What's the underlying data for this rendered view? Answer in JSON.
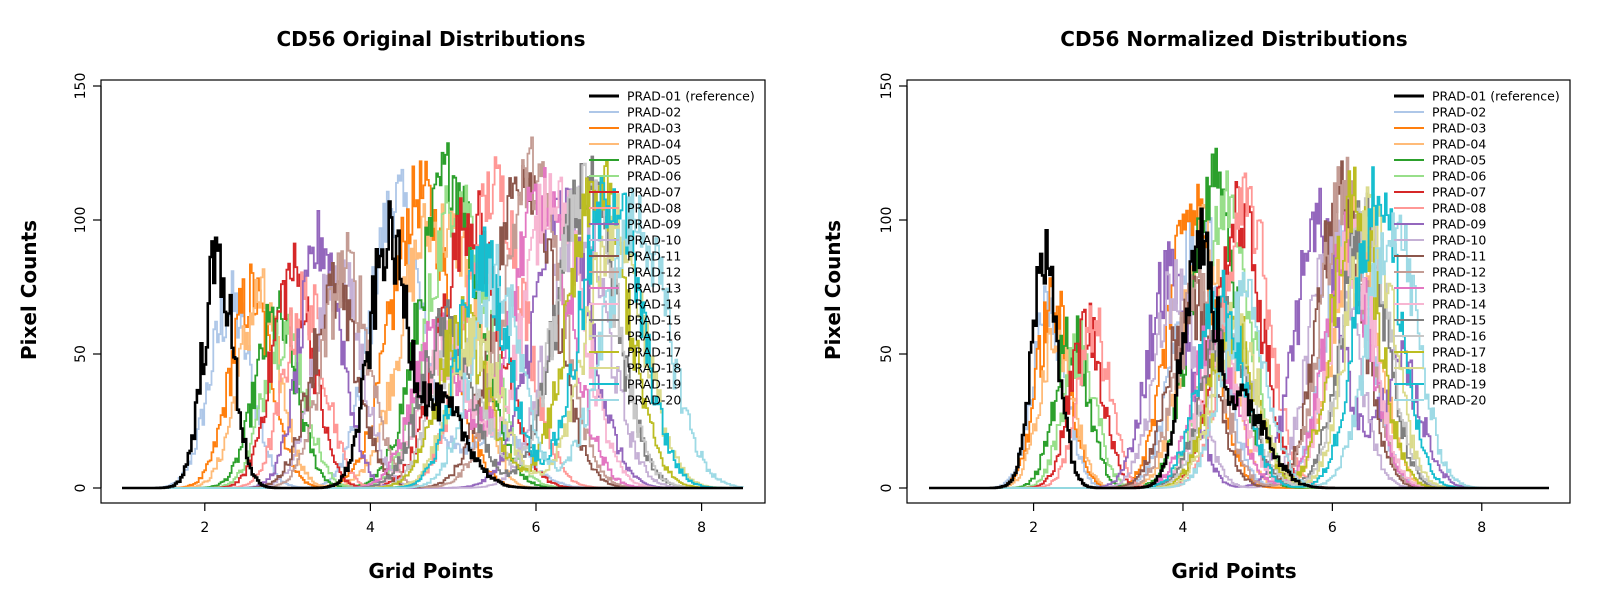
{
  "palette": {
    "PRAD-01 (reference)": "#000000",
    "PRAD-02": "#aec7e8",
    "PRAD-03": "#ff7f0e",
    "PRAD-04": "#ffbb78",
    "PRAD-05": "#2ca02c",
    "PRAD-06": "#98df8a",
    "PRAD-07": "#d62728",
    "PRAD-08": "#ff9896",
    "PRAD-09": "#9467bd",
    "PRAD-10": "#c5b0d5",
    "PRAD-11": "#8c564b",
    "PRAD-12": "#c49c94",
    "PRAD-13": "#e377c2",
    "PRAD-14": "#f7b6d2",
    "PRAD-15": "#7f7f7f",
    "PRAD-16": "#c7c7c7",
    "PRAD-17": "#bcbd22",
    "PRAD-18": "#dbdb8d",
    "PRAD-19": "#17becf",
    "PRAD-20": "#9edae5"
  },
  "chart_data": [
    {
      "type": "line",
      "title": "CD56 Original Distributions",
      "xlabel": "Grid Points",
      "ylabel": "Pixel Counts",
      "xlim": [
        1.0,
        8.5
      ],
      "ylim": [
        0,
        150
      ],
      "x_ticks": [
        2,
        4,
        6,
        8
      ],
      "y_ticks": [
        0,
        50,
        100,
        150
      ],
      "legend_position": "top-right",
      "grid": false,
      "series": [
        {
          "name": "PRAD-01 (reference)",
          "peaks": [
            {
              "center": 2.15,
              "height": 85,
              "sd": 0.18
            },
            {
              "center": 4.2,
              "height": 90,
              "sd": 0.22
            },
            {
              "center": 4.85,
              "height": 30,
              "sd": 0.3
            }
          ]
        },
        {
          "name": "PRAD-02",
          "peaks": [
            {
              "center": 2.3,
              "height": 68,
              "sd": 0.25
            },
            {
              "center": 4.3,
              "height": 108,
              "sd": 0.3
            },
            {
              "center": 5.5,
              "height": 22,
              "sd": 0.35
            }
          ]
        },
        {
          "name": "PRAD-03",
          "peaks": [
            {
              "center": 2.55,
              "height": 72,
              "sd": 0.25
            },
            {
              "center": 4.6,
              "height": 110,
              "sd": 0.35
            }
          ]
        },
        {
          "name": "PRAD-04",
          "peaks": [
            {
              "center": 2.65,
              "height": 70,
              "sd": 0.25
            },
            {
              "center": 4.7,
              "height": 95,
              "sd": 0.35
            },
            {
              "center": 5.2,
              "height": 45,
              "sd": 0.2
            }
          ]
        },
        {
          "name": "PRAD-05",
          "peaks": [
            {
              "center": 2.85,
              "height": 62,
              "sd": 0.25
            },
            {
              "center": 4.95,
              "height": 118,
              "sd": 0.35
            }
          ]
        },
        {
          "name": "PRAD-06",
          "peaks": [
            {
              "center": 2.95,
              "height": 60,
              "sd": 0.25
            },
            {
              "center": 5.05,
              "height": 110,
              "sd": 0.35
            }
          ]
        },
        {
          "name": "PRAD-07",
          "peaks": [
            {
              "center": 3.05,
              "height": 80,
              "sd": 0.25
            },
            {
              "center": 5.2,
              "height": 102,
              "sd": 0.35
            }
          ]
        },
        {
          "name": "PRAD-08",
          "peaks": [
            {
              "center": 3.2,
              "height": 70,
              "sd": 0.25
            },
            {
              "center": 5.5,
              "height": 112,
              "sd": 0.35
            }
          ]
        },
        {
          "name": "PRAD-09",
          "peaks": [
            {
              "center": 3.4,
              "height": 92,
              "sd": 0.25
            },
            {
              "center": 6.3,
              "height": 102,
              "sd": 0.35
            }
          ]
        },
        {
          "name": "PRAD-10",
          "peaks": [
            {
              "center": 3.6,
              "height": 80,
              "sd": 0.28
            },
            {
              "center": 6.5,
              "height": 100,
              "sd": 0.35
            }
          ]
        },
        {
          "name": "PRAD-11",
          "peaks": [
            {
              "center": 3.55,
              "height": 72,
              "sd": 0.28
            },
            {
              "center": 5.85,
              "height": 120,
              "sd": 0.35
            }
          ]
        },
        {
          "name": "PRAD-12",
          "peaks": [
            {
              "center": 3.7,
              "height": 82,
              "sd": 0.28
            },
            {
              "center": 5.95,
              "height": 118,
              "sd": 0.35
            }
          ]
        },
        {
          "name": "PRAD-13",
          "peaks": [
            {
              "center": 4.8,
              "height": 55,
              "sd": 0.3
            },
            {
              "center": 6.05,
              "height": 108,
              "sd": 0.35
            }
          ]
        },
        {
          "name": "PRAD-14",
          "peaks": [
            {
              "center": 4.9,
              "height": 52,
              "sd": 0.3
            },
            {
              "center": 6.2,
              "height": 112,
              "sd": 0.35
            }
          ]
        },
        {
          "name": "PRAD-15",
          "peaks": [
            {
              "center": 4.9,
              "height": 58,
              "sd": 0.3
            },
            {
              "center": 6.6,
              "height": 112,
              "sd": 0.35
            }
          ]
        },
        {
          "name": "PRAD-16",
          "peaks": [
            {
              "center": 5.05,
              "height": 55,
              "sd": 0.3
            },
            {
              "center": 6.6,
              "height": 116,
              "sd": 0.35
            }
          ]
        },
        {
          "name": "PRAD-17",
          "peaks": [
            {
              "center": 5.1,
              "height": 60,
              "sd": 0.3
            },
            {
              "center": 6.75,
              "height": 112,
              "sd": 0.35
            }
          ]
        },
        {
          "name": "PRAD-18",
          "peaks": [
            {
              "center": 5.25,
              "height": 58,
              "sd": 0.3
            },
            {
              "center": 6.95,
              "height": 98,
              "sd": 0.35
            }
          ]
        },
        {
          "name": "PRAD-19",
          "peaks": [
            {
              "center": 5.35,
              "height": 85,
              "sd": 0.3
            },
            {
              "center": 6.9,
              "height": 110,
              "sd": 0.35
            }
          ]
        },
        {
          "name": "PRAD-20",
          "peaks": [
            {
              "center": 5.5,
              "height": 78,
              "sd": 0.3
            },
            {
              "center": 7.2,
              "height": 100,
              "sd": 0.38
            }
          ]
        }
      ]
    },
    {
      "type": "line",
      "title": "CD56 Normalized Distributions",
      "xlabel": "Grid Points",
      "ylabel": "Pixel Counts",
      "xlim": [
        0.6,
        8.9
      ],
      "ylim": [
        0,
        150
      ],
      "x_ticks": [
        2,
        4,
        6,
        8
      ],
      "y_ticks": [
        0,
        50,
        100,
        150
      ],
      "legend_position": "top-right",
      "grid": false,
      "series": [
        {
          "name": "PRAD-01 (reference)",
          "peaks": [
            {
              "center": 2.15,
              "height": 85,
              "sd": 0.18
            },
            {
              "center": 4.2,
              "height": 90,
              "sd": 0.22
            },
            {
              "center": 4.85,
              "height": 30,
              "sd": 0.3
            }
          ]
        },
        {
          "name": "PRAD-02",
          "peaks": [
            {
              "center": 2.2,
              "height": 65,
              "sd": 0.22
            },
            {
              "center": 4.2,
              "height": 100,
              "sd": 0.3
            },
            {
              "center": 6.2,
              "height": 95,
              "sd": 0.3
            }
          ]
        },
        {
          "name": "PRAD-03",
          "peaks": [
            {
              "center": 2.25,
              "height": 68,
              "sd": 0.22
            },
            {
              "center": 4.1,
              "height": 108,
              "sd": 0.3
            }
          ]
        },
        {
          "name": "PRAD-04",
          "peaks": [
            {
              "center": 2.3,
              "height": 60,
              "sd": 0.22
            },
            {
              "center": 4.3,
              "height": 95,
              "sd": 0.3
            },
            {
              "center": 6.3,
              "height": 98,
              "sd": 0.3
            }
          ]
        },
        {
          "name": "PRAD-05",
          "peaks": [
            {
              "center": 2.5,
              "height": 58,
              "sd": 0.22
            },
            {
              "center": 4.4,
              "height": 115,
              "sd": 0.3
            }
          ]
        },
        {
          "name": "PRAD-06",
          "peaks": [
            {
              "center": 2.6,
              "height": 52,
              "sd": 0.22
            },
            {
              "center": 4.6,
              "height": 108,
              "sd": 0.3
            }
          ]
        },
        {
          "name": "PRAD-07",
          "peaks": [
            {
              "center": 2.7,
              "height": 60,
              "sd": 0.22
            },
            {
              "center": 4.75,
              "height": 102,
              "sd": 0.3
            }
          ]
        },
        {
          "name": "PRAD-08",
          "peaks": [
            {
              "center": 2.8,
              "height": 58,
              "sd": 0.22
            },
            {
              "center": 4.85,
              "height": 105,
              "sd": 0.3
            }
          ]
        },
        {
          "name": "PRAD-09",
          "peaks": [
            {
              "center": 3.8,
              "height": 80,
              "sd": 0.28
            },
            {
              "center": 5.8,
              "height": 100,
              "sd": 0.3
            },
            {
              "center": 6.9,
              "height": 45,
              "sd": 0.28
            }
          ]
        },
        {
          "name": "PRAD-10",
          "peaks": [
            {
              "center": 3.9,
              "height": 75,
              "sd": 0.28
            },
            {
              "center": 6.0,
              "height": 95,
              "sd": 0.3
            }
          ]
        },
        {
          "name": "PRAD-11",
          "peaks": [
            {
              "center": 4.1,
              "height": 70,
              "sd": 0.3
            },
            {
              "center": 6.1,
              "height": 110,
              "sd": 0.3
            }
          ]
        },
        {
          "name": "PRAD-12",
          "peaks": [
            {
              "center": 4.2,
              "height": 72,
              "sd": 0.3
            },
            {
              "center": 6.15,
              "height": 112,
              "sd": 0.3
            }
          ]
        },
        {
          "name": "PRAD-13",
          "peaks": [
            {
              "center": 4.4,
              "height": 55,
              "sd": 0.3
            },
            {
              "center": 6.2,
              "height": 90,
              "sd": 0.3
            }
          ]
        },
        {
          "name": "PRAD-14",
          "peaks": [
            {
              "center": 4.5,
              "height": 52,
              "sd": 0.3
            },
            {
              "center": 6.25,
              "height": 88,
              "sd": 0.3
            }
          ]
        },
        {
          "name": "PRAD-15",
          "peaks": [
            {
              "center": 4.55,
              "height": 60,
              "sd": 0.3
            },
            {
              "center": 6.4,
              "height": 100,
              "sd": 0.3
            }
          ]
        },
        {
          "name": "PRAD-16",
          "peaks": [
            {
              "center": 4.6,
              "height": 58,
              "sd": 0.3
            },
            {
              "center": 6.45,
              "height": 98,
              "sd": 0.3
            }
          ]
        },
        {
          "name": "PRAD-17",
          "peaks": [
            {
              "center": 4.65,
              "height": 62,
              "sd": 0.3
            },
            {
              "center": 6.3,
              "height": 110,
              "sd": 0.3
            }
          ]
        },
        {
          "name": "PRAD-18",
          "peaks": [
            {
              "center": 4.7,
              "height": 60,
              "sd": 0.3
            },
            {
              "center": 6.5,
              "height": 100,
              "sd": 0.3
            }
          ]
        },
        {
          "name": "PRAD-19",
          "peaks": [
            {
              "center": 4.5,
              "height": 70,
              "sd": 0.3
            },
            {
              "center": 6.6,
              "height": 110,
              "sd": 0.3
            }
          ]
        },
        {
          "name": "PRAD-20",
          "peaks": [
            {
              "center": 4.8,
              "height": 68,
              "sd": 0.3
            },
            {
              "center": 6.8,
              "height": 100,
              "sd": 0.32
            }
          ]
        }
      ]
    }
  ]
}
